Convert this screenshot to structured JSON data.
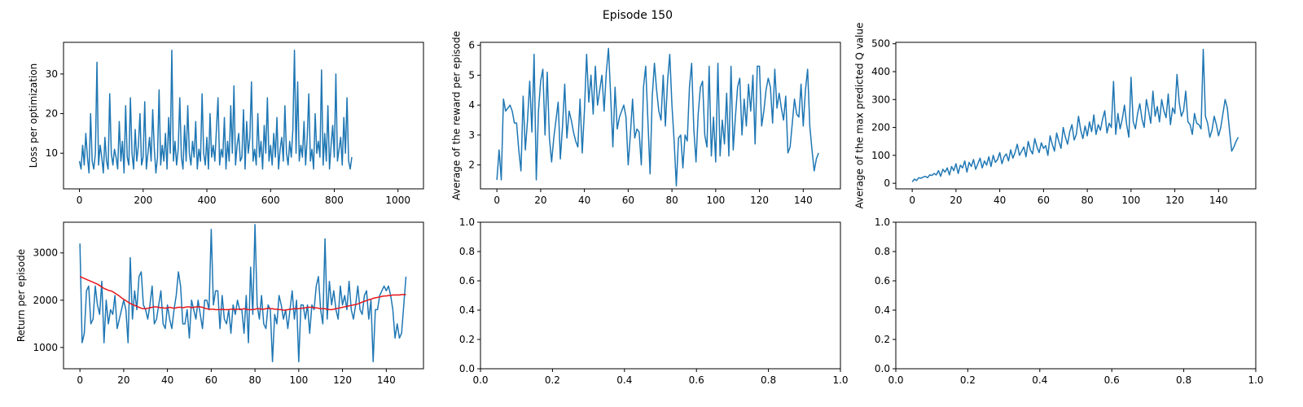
{
  "figure": {
    "title": "Episode 150"
  },
  "colors": {
    "series": "#1f77b4",
    "smooth": "#e8151b"
  },
  "chart_data": [
    {
      "id": "loss",
      "type": "line",
      "title": "",
      "xlabel": "",
      "ylabel": "Loss per optimization",
      "xlim": [
        -50,
        1080
      ],
      "ylim": [
        1,
        38
      ],
      "xticks": [
        0,
        200,
        400,
        600,
        800,
        1000
      ],
      "yticks": [
        10,
        20,
        30
      ],
      "grid": false,
      "series": [
        {
          "x_start": 0,
          "x_step": 5,
          "values": [
            8,
            6,
            12,
            7,
            15,
            9,
            5,
            20,
            8,
            6,
            10,
            33,
            7,
            12,
            9,
            5,
            14,
            8,
            6,
            25,
            10,
            7,
            11,
            9,
            6,
            18,
            8,
            13,
            5,
            22,
            9,
            7,
            24,
            10,
            6,
            16,
            8,
            12,
            20,
            7,
            9,
            23,
            6,
            10,
            14,
            8,
            21,
            11,
            5,
            9,
            26,
            7,
            12,
            8,
            15,
            6,
            19,
            10,
            36,
            8,
            13,
            7,
            11,
            24,
            9,
            6,
            17,
            8,
            22,
            10,
            7,
            13,
            9,
            18,
            6,
            11,
            8,
            25,
            10,
            7,
            14,
            6,
            20,
            9,
            12,
            8,
            16,
            24,
            7,
            11,
            9,
            19,
            6,
            13,
            8,
            22,
            10,
            27,
            7,
            12,
            15,
            8,
            9,
            21,
            6,
            18,
            10,
            14,
            28,
            8,
            11,
            7,
            20,
            9,
            13,
            6,
            17,
            10,
            24,
            8,
            12,
            7,
            15,
            9,
            19,
            6,
            11,
            14,
            8,
            22,
            10,
            7,
            13,
            9,
            16,
            36,
            10,
            28,
            8,
            12,
            9,
            18,
            7,
            14,
            25,
            8,
            11,
            6,
            20,
            10,
            13,
            9,
            31,
            7,
            15,
            8,
            22,
            6,
            12,
            17,
            9,
            30,
            8,
            11,
            14,
            7,
            19,
            10,
            24,
            8,
            6,
            9
          ]
        }
      ]
    },
    {
      "id": "avg-reward",
      "type": "line",
      "title": "",
      "xlabel": "",
      "ylabel": "Average of the reward per episode",
      "xlim": [
        -7.5,
        157
      ],
      "ylim": [
        1.2,
        6.1
      ],
      "xticks": [
        0,
        20,
        40,
        60,
        80,
        100,
        120,
        140
      ],
      "yticks": [
        2,
        3,
        4,
        5,
        6
      ],
      "grid": false,
      "series": [
        {
          "x_start": 0,
          "x_step": 1,
          "values": [
            1.5,
            2.5,
            1.5,
            4.2,
            3.8,
            3.9,
            4.0,
            3.8,
            3.4,
            3.4,
            2.5,
            1.8,
            4.3,
            2.5,
            3.5,
            4.8,
            3.1,
            5.7,
            1.5,
            3.8,
            4.8,
            5.2,
            3.0,
            5.1,
            2.9,
            2.1,
            2.9,
            3.5,
            4.1,
            2.2,
            3.3,
            4.7,
            2.9,
            3.8,
            3.5,
            3.1,
            2.8,
            2.6,
            4.2,
            2.4,
            3.8,
            5.7,
            4.1,
            5.0,
            3.7,
            5.3,
            4.0,
            4.5,
            5.0,
            3.8,
            5.1,
            5.9,
            4.3,
            2.6,
            4.6,
            3.2,
            3.6,
            3.8,
            4.0,
            3.6,
            2.0,
            3.0,
            4.2,
            2.9,
            3.2,
            3.1,
            2.0,
            4.6,
            5.3,
            3.5,
            1.7,
            4.3,
            5.4,
            4.5,
            3.8,
            3.5,
            5.0,
            3.3,
            4.8,
            5.7,
            4.0,
            2.8,
            1.3,
            2.9,
            3.0,
            1.9,
            3.0,
            2.8,
            4.6,
            5.4,
            3.2,
            2.1,
            3.7,
            4.6,
            4.8,
            3.0,
            2.6,
            5.3,
            2.3,
            3.6,
            2.1,
            5.4,
            2.3,
            3.5,
            2.7,
            4.4,
            2.3,
            5.3,
            2.5,
            3.6,
            4.6,
            4.9,
            3.0,
            4.2,
            3.3,
            4.7,
            3.8,
            5.0,
            2.7,
            5.3,
            5.3,
            3.3,
            3.8,
            4.5,
            4.9,
            4.6,
            3.4,
            5.2,
            3.9,
            4.4,
            3.9,
            3.5,
            4.3,
            2.4,
            2.6,
            3.4,
            4.2,
            3.7,
            3.6,
            4.7,
            3.3,
            4.5,
            5.2,
            3.3,
            2.5,
            1.8,
            2.2,
            2.4
          ]
        }
      ]
    },
    {
      "id": "max-q",
      "type": "line",
      "title": "",
      "xlabel": "",
      "ylabel": "Average of the max predicted Q value",
      "xlim": [
        -7.5,
        157
      ],
      "ylim": [
        -20,
        505
      ],
      "xticks": [
        0,
        20,
        40,
        60,
        80,
        100,
        120,
        140
      ],
      "yticks": [
        0,
        100,
        200,
        300,
        400,
        500
      ],
      "grid": false,
      "series": [
        {
          "x_start": 0,
          "x_step": 1,
          "values": [
            5,
            15,
            10,
            20,
            18,
            22,
            25,
            20,
            30,
            28,
            35,
            30,
            45,
            25,
            50,
            40,
            55,
            30,
            60,
            45,
            70,
            35,
            65,
            55,
            80,
            40,
            75,
            60,
            85,
            50,
            70,
            90,
            55,
            80,
            65,
            95,
            60,
            100,
            75,
            85,
            110,
            70,
            95,
            105,
            80,
            120,
            90,
            110,
            140,
            100,
            115,
            130,
            95,
            150,
            120,
            105,
            160,
            130,
            110,
            145,
            125,
            135,
            100,
            170,
            140,
            115,
            180,
            150,
            125,
            200,
            165,
            140,
            185,
            210,
            155,
            175,
            240,
            190,
            160,
            205,
            170,
            220,
            185,
            245,
            175,
            210,
            190,
            230,
            260,
            180,
            215,
            200,
            365,
            175,
            250,
            195,
            230,
            280,
            210,
            165,
            380,
            220,
            195,
            250,
            285,
            230,
            200,
            300,
            260,
            215,
            330,
            240,
            275,
            220,
            300,
            260,
            235,
            320,
            210,
            270,
            250,
            390,
            290,
            240,
            260,
            330,
            220,
            210,
            175,
            250,
            215,
            210,
            195,
            480,
            240,
            215,
            165,
            190,
            240,
            210,
            170,
            200,
            250,
            300,
            270,
            190,
            115,
            130,
            150,
            165
          ]
        }
      ]
    },
    {
      "id": "return",
      "type": "line",
      "title": "",
      "xlabel": "",
      "ylabel": "Return per episode",
      "xlim": [
        -7.5,
        157
      ],
      "ylim": [
        550,
        3650
      ],
      "xticks": [
        0,
        20,
        40,
        60,
        80,
        100,
        120,
        140
      ],
      "yticks": [
        1000,
        2000,
        3000
      ],
      "grid": false,
      "series": [
        {
          "x_start": 0,
          "x_step": 1,
          "values": [
            3200,
            1100,
            1300,
            2200,
            2300,
            1500,
            1600,
            2300,
            1900,
            1700,
            2400,
            1100,
            2000,
            1500,
            1800,
            1700,
            2100,
            1400,
            1600,
            1800,
            2000,
            1800,
            1100,
            2900,
            1600,
            2200,
            1800,
            2500,
            2600,
            1900,
            1800,
            1600,
            1900,
            2300,
            1500,
            1600,
            1900,
            2200,
            1500,
            1400,
            1900,
            1600,
            1400,
            1800,
            2100,
            2600,
            2300,
            1500,
            1500,
            1800,
            1200,
            2000,
            1800,
            1600,
            2000,
            1700,
            1400,
            2000,
            2000,
            1800,
            3500,
            1900,
            2200,
            2200,
            1400,
            2100,
            1600,
            1500,
            1800,
            1300,
            1900,
            1700,
            2000,
            1800,
            1800,
            1300,
            2100,
            1100,
            2700,
            1700,
            3600,
            1900,
            1600,
            2100,
            1500,
            1400,
            1900,
            1800,
            700,
            1700,
            1500,
            2100,
            1900,
            1600,
            1800,
            1400,
            1800,
            2200,
            1600,
            2000,
            700,
            1900,
            1900,
            1600,
            1900,
            1300,
            1900,
            1800,
            2300,
            2500,
            1800,
            1500,
            3300,
            1600,
            2400,
            1900,
            2200,
            1800,
            1600,
            2300,
            1900,
            2100,
            1800,
            2400,
            1800,
            1600,
            1900,
            2300,
            1800,
            1700,
            2100,
            2200,
            1600,
            2000,
            700,
            1800,
            1800,
            2100,
            2200,
            2300,
            2200,
            2300,
            2100,
            1800,
            1200,
            1500,
            1200,
            1300,
            1900,
            2500
          ]
        },
        {
          "x_start": 0,
          "x_step": 1,
          "values": [
            2500,
            2480,
            2460,
            2440,
            2420,
            2400,
            2380,
            2360,
            2340,
            2310,
            2280,
            2250,
            2230,
            2210,
            2200,
            2180,
            2150,
            2120,
            2090,
            2050,
            2020,
            1990,
            1960,
            1930,
            1910,
            1890,
            1870,
            1850,
            1830,
            1820,
            1820,
            1830,
            1840,
            1850,
            1860,
            1860,
            1850,
            1840,
            1840,
            1830,
            1840,
            1850,
            1840,
            1830,
            1840,
            1850,
            1850,
            1840,
            1850,
            1860,
            1860,
            1840,
            1850,
            1860,
            1860,
            1860,
            1850,
            1830,
            1820,
            1810,
            1810,
            1810,
            1800,
            1800,
            1800,
            1810,
            1800,
            1800,
            1800,
            1810,
            1810,
            1800,
            1810,
            1810,
            1810,
            1820,
            1810,
            1800,
            1800,
            1800,
            1810,
            1820,
            1820,
            1810,
            1810,
            1820,
            1830,
            1820,
            1820,
            1810,
            1810,
            1800,
            1800,
            1790,
            1790,
            1800,
            1810,
            1810,
            1820,
            1820,
            1820,
            1830,
            1830,
            1840,
            1850,
            1850,
            1850,
            1840,
            1840,
            1830,
            1820,
            1820,
            1820,
            1810,
            1800,
            1800,
            1810,
            1820,
            1830,
            1840,
            1850,
            1860,
            1870,
            1880,
            1890,
            1900,
            1910,
            1920,
            1940,
            1960,
            1980,
            1990,
            2010,
            2020,
            2040,
            2050,
            2060,
            2070,
            2080,
            2090,
            2090,
            2100,
            2100,
            2110,
            2110,
            2110,
            2110,
            2120,
            2120,
            2120
          ]
        }
      ]
    },
    {
      "id": "empty-1",
      "type": "line",
      "title": "",
      "xlabel": "",
      "ylabel": "",
      "xlim": [
        0,
        1
      ],
      "ylim": [
        0,
        1
      ],
      "xticks": [
        0.0,
        0.2,
        0.4,
        0.6,
        0.8,
        1.0
      ],
      "yticks": [
        0.0,
        0.2,
        0.4,
        0.6,
        0.8,
        1.0
      ],
      "grid": false,
      "series": []
    },
    {
      "id": "empty-2",
      "type": "line",
      "title": "",
      "xlabel": "",
      "ylabel": "",
      "xlim": [
        0,
        1
      ],
      "ylim": [
        0,
        1
      ],
      "xticks": [
        0.0,
        0.2,
        0.4,
        0.6,
        0.8,
        1.0
      ],
      "yticks": [
        0.0,
        0.2,
        0.4,
        0.6,
        0.8,
        1.0
      ],
      "grid": false,
      "series": []
    }
  ]
}
